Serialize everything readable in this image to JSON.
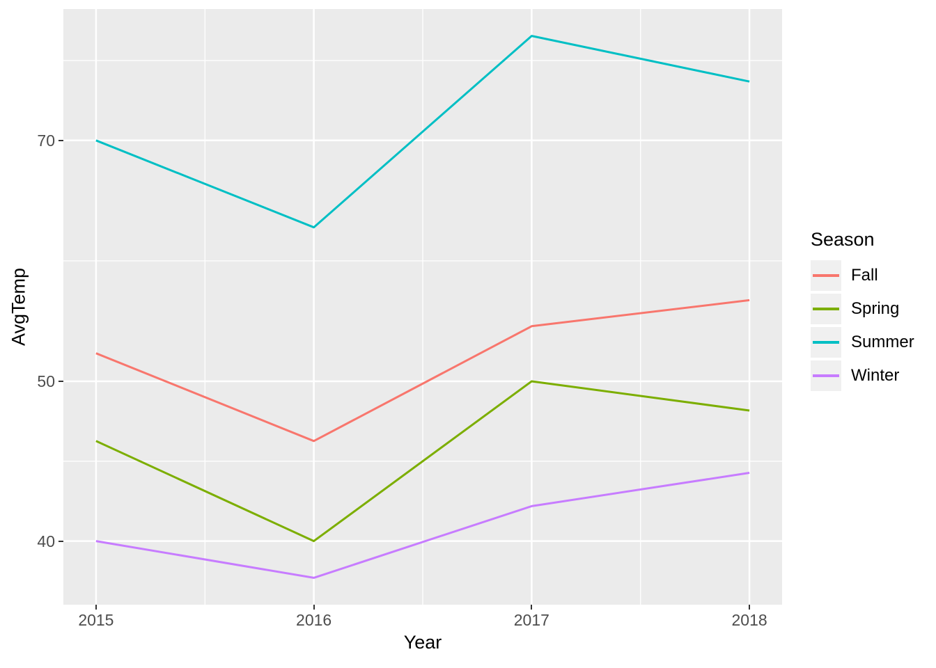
{
  "figure": {
    "background": "#FFFFFF",
    "panel_background": "#EBEBEB",
    "gridline_color": "#FFFFFF",
    "tick_mark_color": "#333333",
    "axis_text_color": "#4D4D4D"
  },
  "chart_data": {
    "type": "line",
    "title": "",
    "xlabel": "Year",
    "ylabel": "AvgTemp",
    "x": [
      2015,
      2016,
      2017,
      2018
    ],
    "series": [
      {
        "name": "Fall",
        "color": "#F8766D",
        "values": [
          52,
          46,
          54,
          56
        ]
      },
      {
        "name": "Spring",
        "color": "#7CAE00",
        "values": [
          46,
          40,
          50,
          48
        ]
      },
      {
        "name": "Summer",
        "color": "#00BFC4",
        "values": [
          70,
          62,
          81,
          76
        ]
      },
      {
        "name": "Winter",
        "color": "#C77CFF",
        "values": [
          40,
          38,
          42,
          44
        ]
      }
    ],
    "x_axis": {
      "tick_labels": [
        "2015",
        "2016",
        "2017",
        "2018"
      ],
      "tick_values": [
        2015,
        2016,
        2017,
        2018
      ],
      "minor_gridlines": [
        2015.5,
        2016.5,
        2017.5
      ],
      "range": [
        2014.85,
        2018.15
      ],
      "grid": true
    },
    "y_axis": {
      "scale": "log10",
      "tick_labels": [
        "70",
        "50",
        "40"
      ],
      "tick_values": [
        70,
        50,
        40
      ],
      "minor_gridlines": [
        78.26,
        59.16,
        44.72
      ],
      "range": [
        36.6,
        84.1
      ],
      "grid": true
    },
    "legend": {
      "title": "Season",
      "position": "right",
      "entries": [
        "Fall",
        "Spring",
        "Summer",
        "Winter"
      ]
    }
  }
}
